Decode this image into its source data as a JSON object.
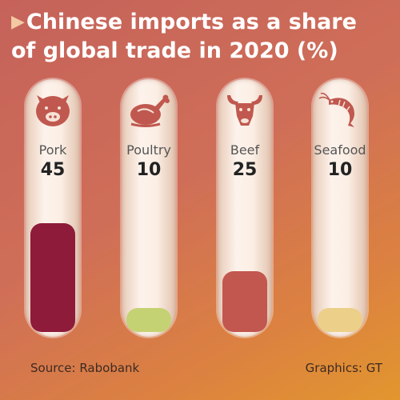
{
  "title_line1": "Chinese imports as a share",
  "title_line2": "of global trade in 2020 (%)",
  "source": "Source: Rabobank",
  "credit": "Graphics: GT",
  "chart_data": {
    "type": "bar",
    "title": "Chinese imports as a share of global trade in 2020 (%)",
    "categories": [
      "Pork",
      "Poultry",
      "Beef",
      "Seafood"
    ],
    "values": [
      45,
      10,
      25,
      10
    ],
    "ylim": [
      0,
      45
    ],
    "colors": [
      "#8e1b3a",
      "#c5d274",
      "#c2574f",
      "#ecd08a"
    ],
    "icons": [
      "pig-icon",
      "roast-chicken-icon",
      "bull-icon",
      "shrimp-icon"
    ]
  }
}
